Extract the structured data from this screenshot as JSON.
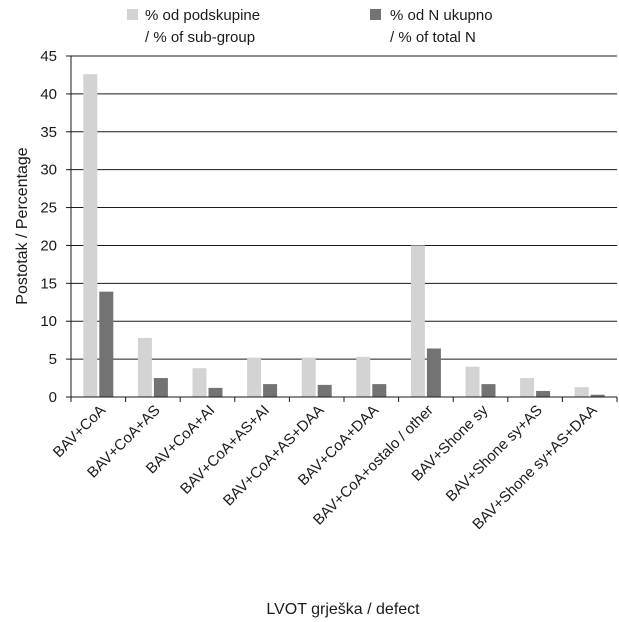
{
  "chart_data": {
    "type": "bar",
    "title": "",
    "xlabel": "LVOT grješka / defect",
    "ylabel": "Postotak / Percentage",
    "ylim": [
      0,
      45
    ],
    "yticks": [
      0,
      5,
      10,
      15,
      20,
      25,
      30,
      35,
      40,
      45
    ],
    "grid": true,
    "legend_position": "top",
    "categories": [
      "BAV+CoA",
      "BAV+CoA+AS",
      "BAV+CoA+AI",
      "BAV+CoA+AS+AI",
      "BAV+CoA+AS+DAA",
      "BAV+CoA+DAA",
      "BAV+CoA+ostalo / other",
      "BAV+Shone sy",
      "BAV+Shone sy+AS",
      "BAV+Shone sy+AS+DAA"
    ],
    "series": [
      {
        "name_line1": "% od podskupine",
        "name_line2": "/ % of sub-group",
        "color": "#d3d3d3",
        "values": [
          42.6,
          7.8,
          3.8,
          5.2,
          5.2,
          5.3,
          20.0,
          4.0,
          2.5,
          1.3
        ]
      },
      {
        "name_line1": "% od N ukupno",
        "name_line2": "/ % of total N",
        "color": "#737373",
        "values": [
          13.9,
          2.5,
          1.2,
          1.7,
          1.6,
          1.7,
          6.4,
          1.7,
          0.8,
          0.3
        ]
      }
    ]
  }
}
